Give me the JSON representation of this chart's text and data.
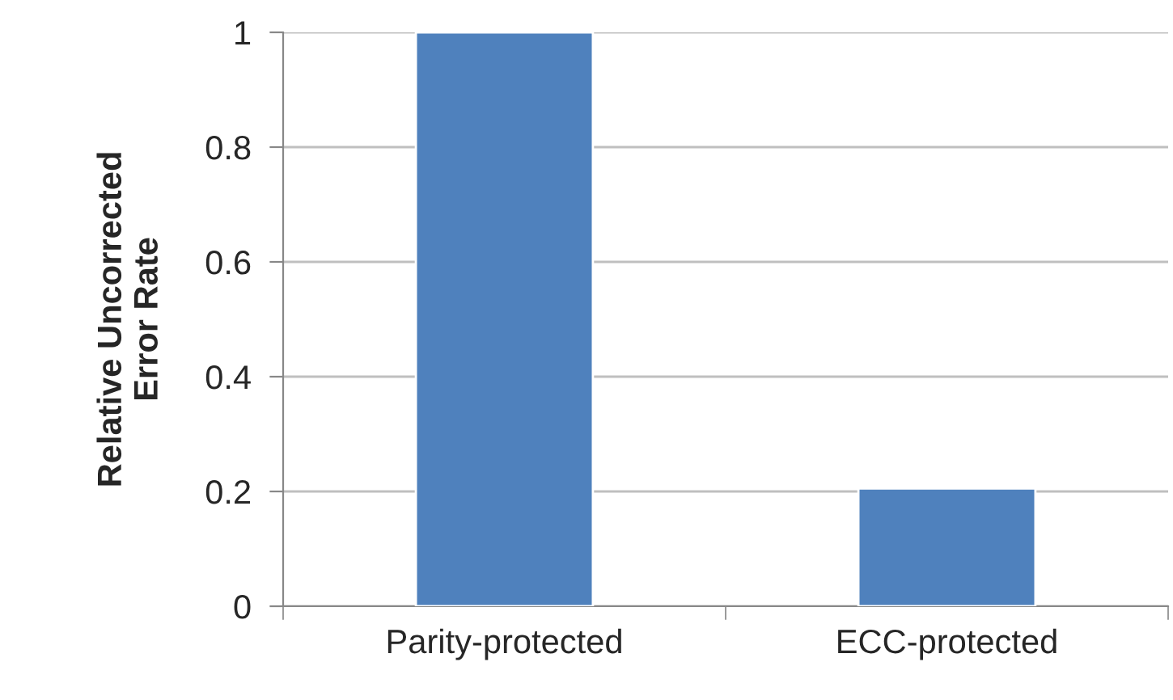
{
  "chart_data": {
    "type": "bar",
    "ylabel": "Relative Uncorrected\nError Rate",
    "categories": [
      "Parity-protected",
      "ECC-protected"
    ],
    "values": [
      1,
      0.205
    ],
    "color": "#4f81bd",
    "ylim": [
      0,
      1
    ],
    "yticks": [
      0,
      0.2,
      0.4,
      0.6,
      0.8,
      1
    ],
    "grid": "y"
  }
}
